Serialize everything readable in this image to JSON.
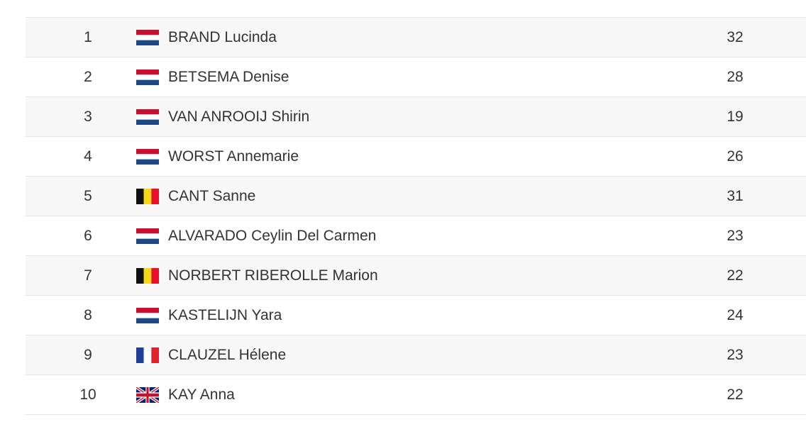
{
  "table": {
    "rows": [
      [
        1,
        "BRAND Lucinda",
        32
      ],
      [
        2,
        "BETSEMA Denise",
        28
      ],
      [
        3,
        "VAN ANROOIJ Shirin",
        19
      ],
      [
        4,
        "WORST Annemarie",
        26
      ],
      [
        5,
        "CANT Sanne",
        31
      ],
      [
        6,
        "ALVARADO Ceylin Del Carmen",
        23
      ],
      [
        7,
        "NORBERT RIBEROLLE Marion",
        22
      ],
      [
        8,
        "KASTELIJN Yara",
        24
      ],
      [
        9,
        "CLAUZEL Hélene",
        23
      ],
      [
        10,
        "KAY Anna",
        22
      ]
    ]
  }
}
